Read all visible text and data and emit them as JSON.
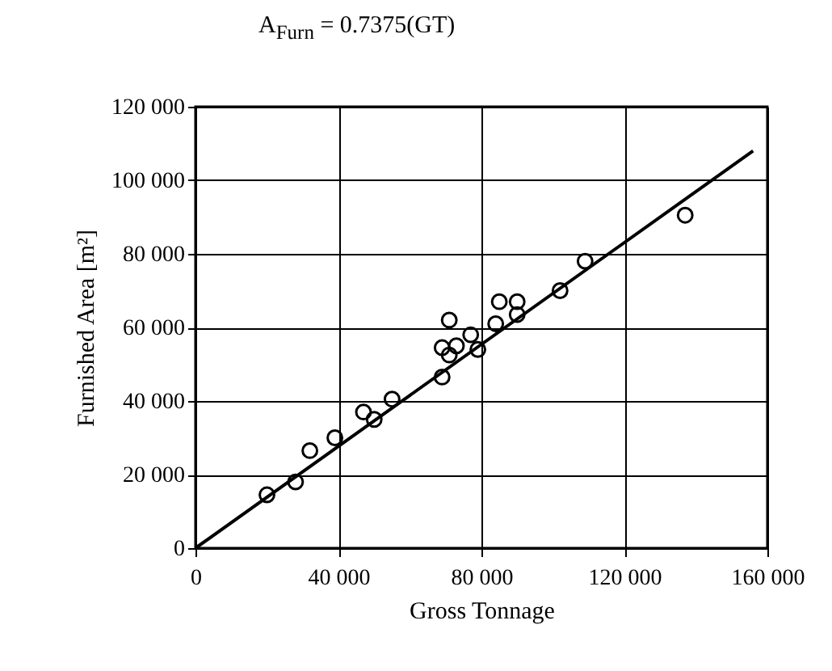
{
  "chart_data": {
    "type": "scatter",
    "title": "A$_{Furn}$ = 0.7375(GT)",
    "xlabel": "Gross Tonnage",
    "ylabel": "Furnished Area [m²]",
    "xlim": [
      0,
      160000
    ],
    "ylim": [
      0,
      120000
    ],
    "xticks": [
      0,
      {
        "value": 40000,
        "label": "40 000"
      },
      {
        "value": 80000,
        "label": "80 000"
      },
      {
        "value": 120000,
        "label": "120 000"
      },
      {
        "value": 160000,
        "label": "160 000"
      }
    ],
    "yticks": [
      0,
      {
        "value": 20000,
        "label": "20 000"
      },
      {
        "value": 40000,
        "label": "40 000"
      },
      {
        "value": 60000,
        "label": "60 000"
      },
      {
        "value": 80000,
        "label": "80 000"
      },
      {
        "value": 100000,
        "label": "100 000"
      },
      {
        "value": 120000,
        "label": "120 000"
      }
    ],
    "grid": true,
    "marker": "circle",
    "series": [
      {
        "color": "#000000",
        "x": [
          20000,
          28000,
          32000,
          39000,
          47000,
          50000,
          55000,
          69000,
          71000,
          69000,
          71000,
          73000,
          77000,
          79000,
          84000,
          85000,
          90000,
          90000,
          102000,
          109000,
          137000
        ],
        "values": [
          14500,
          18000,
          26500,
          30000,
          37000,
          35000,
          40500,
          46500,
          62000,
          54500,
          52500,
          55000,
          58000,
          54000,
          61000,
          67000,
          67000,
          63500,
          70000,
          78000,
          90500
        ]
      },
      {
        "type": "line",
        "color": "#000000",
        "marker": "none",
        "x": [
          0,
          156000
        ],
        "values": [
          0,
          108000
        ]
      }
    ]
  }
}
